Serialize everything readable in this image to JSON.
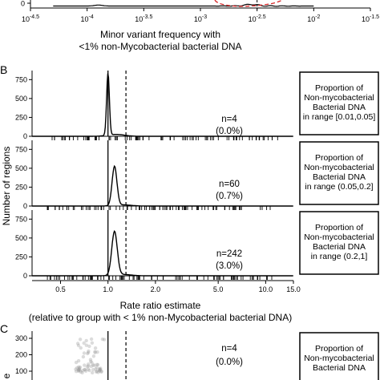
{
  "figure": {
    "panel_a_letter": "",
    "panel_b_letter": "B",
    "panel_c_letter": "C"
  },
  "chart_data": [
    {
      "type": "line",
      "panel": "A (partially visible)",
      "xlabel": "Minor variant frequency with\n<1% non-Mycobacterial bacterial DNA",
      "xlabel_line1": "Minor variant frequency with",
      "xlabel_line2": "<1% non-Mycobacterial bacterial DNA",
      "x_scale": "log10",
      "x_ticks": [
        "10^-4.5",
        "10^-4",
        "10^-3.5",
        "10^-3",
        "10^-2.5",
        "10^-2",
        "10^-1.5"
      ],
      "x_tick_values": [
        -4.5,
        -4,
        -3.5,
        -3,
        -2.5,
        -2,
        -1.5
      ],
      "y_ticks": [
        "0"
      ],
      "dashed_vline_at": -2.5,
      "red_dashed_ellipse": true
    },
    {
      "type": "line",
      "panel": "B",
      "ylabel": "Number of regions",
      "xlabel_line1": "Rate ratio estimate",
      "xlabel_line2": "(relative to group with < 1% non-Mycobacterial bacterial DNA)",
      "x_scale": "log",
      "x_ticks": [
        "0.5",
        "1.0",
        "2.0",
        "5.0",
        "10.0",
        "15.0"
      ],
      "x_tick_values": [
        0.5,
        1.0,
        2.0,
        5.0,
        10.0,
        15.0
      ],
      "xlim": [
        0.33,
        15.0
      ],
      "y_ticks": [
        "0",
        "250",
        "500",
        "750"
      ],
      "y_tick_values": [
        0,
        250,
        500,
        750
      ],
      "ylim": [
        0,
        870
      ],
      "solid_vline": 1.0,
      "dashed_vline": 1.3,
      "facets": [
        {
          "strip_line1": "Proportion of",
          "strip_line2": "Non-mycobacterial",
          "strip_line3": "Bacterial DNA",
          "strip_line4": "in range [0.01,0.05]",
          "n_label": "n=4",
          "pct_label": "(0.0%)",
          "density_peak_x": 1.0,
          "density_peak_y": 820,
          "density_sd_log": 0.02
        },
        {
          "strip_line1": "Proportion of",
          "strip_line2": "Non-mycobacterial",
          "strip_line3": "Bacterial DNA",
          "strip_line4": "in range (0.05,0.2]",
          "n_label": "n=60",
          "pct_label": "(0.7%)",
          "density_peak_x": 1.1,
          "density_peak_y": 520,
          "density_sd_log": 0.035
        },
        {
          "strip_line1": "Proportion of",
          "strip_line2": "Non-mycobacterial",
          "strip_line3": "Bacterial DNA",
          "strip_line4": "in range (0.2,1]",
          "n_label": "n=242",
          "pct_label": "(3.0%)",
          "density_peak_x": 1.1,
          "density_peak_y": 580,
          "density_sd_log": 0.04
        }
      ]
    },
    {
      "type": "scatter",
      "panel": "C (partially visible)",
      "y_ticks": [
        "100",
        "200",
        "300"
      ],
      "y_tick_values": [
        100,
        200,
        300
      ],
      "ylabel_fragment": "e",
      "facets": [
        {
          "strip_line1": "Proportion of",
          "strip_line2": "Non-mycobacterial",
          "strip_line3": "Bacterial DNA",
          "n_label": "n=4",
          "pct_label": "(0.0%)"
        }
      ]
    }
  ]
}
